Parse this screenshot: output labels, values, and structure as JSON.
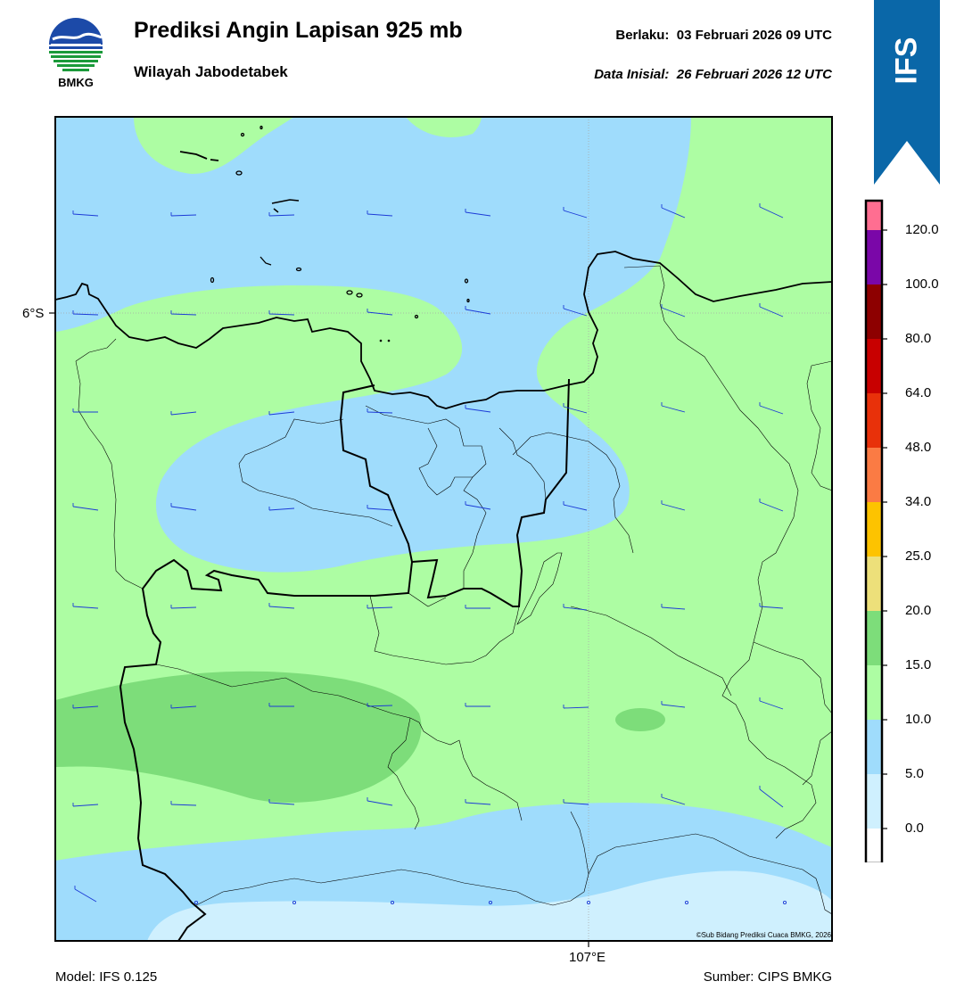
{
  "header": {
    "title": "Prediksi Angin Lapisan 925 mb",
    "subtitle": "Wilayah Jabodetabek",
    "valid_label": "Berlaku:",
    "valid_value": "03 Februari 2026 09 UTC",
    "init_label": "Data Inisial:",
    "init_value": "26 Februari 2026 12 UTC"
  },
  "logo": {
    "text": "BMKG",
    "icon": "bmkg-logo-icon"
  },
  "ribbon": {
    "text": "IFS",
    "color": "#0a67a8"
  },
  "map": {
    "lat_label": "6°S",
    "lon_label": "107°E",
    "copyright": "©Sub Bidang Prediksi Cuaca BMKG, 2026"
  },
  "footer": {
    "model": "Model: IFS 0.125",
    "source": "Sumber: CIPS BMKG"
  },
  "colorbar": {
    "labels": [
      "120.0",
      "100.0",
      "80.0",
      "64.0",
      "48.0",
      "34.0",
      "25.0",
      "20.0",
      "15.0",
      "10.0",
      "5.0",
      "0.0"
    ],
    "colors": [
      "#ff6e91",
      "#7a07a8",
      "#8d0000",
      "#c80000",
      "#e8310a",
      "#fb7b44",
      "#fdc300",
      "#ede07a",
      "#7ddd7a",
      "#adfda3",
      "#9fdcfc",
      "#cff0fe",
      "#ffffff"
    ]
  },
  "legend_colors": {
    "band_0_5": "#cff0fe",
    "band_5_10": "#9fdcfc",
    "band_10_15": "#adfda3",
    "band_15_20": "#7ddd7a",
    "wind_barb": "#1c3bd6"
  }
}
